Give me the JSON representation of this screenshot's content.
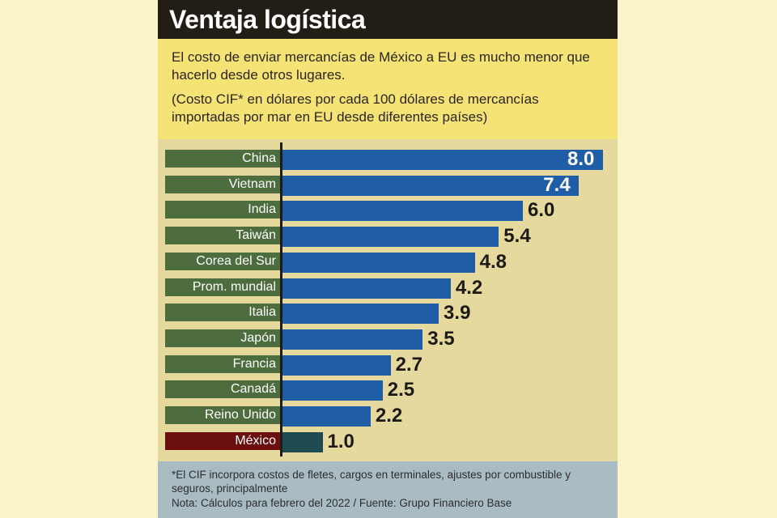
{
  "header": {
    "title": "Ventaja logística",
    "subtitle": "El costo de enviar mercancías de México a EU es mucho menor que hacerlo desde otros lugares.",
    "units": "(Costo CIF* en dólares por cada 100 dólares de mercancías importadas por mar en EU desde diferentes países)"
  },
  "footer": {
    "footnote": "*El CIF incorpora costos de fletes, cargos en terminales, ajustes por combustible y seguros, principalmente",
    "source": "Nota: Cálculos para febrero del 2022 / Fuente: Grupo Financiero Base"
  },
  "colors": {
    "bar": "#1f5da6",
    "bar_highlight": "#1e4a52",
    "label_bg": "#4d6d3e",
    "label_highlight_bg": "#6b0f0f"
  },
  "chart_data": {
    "type": "bar",
    "orientation": "horizontal",
    "categories": [
      "China",
      "Vietnam",
      "India",
      "Taiwán",
      "Corea del Sur",
      "Prom. mundial",
      "Italia",
      "Japón",
      "Francia",
      "Canadá",
      "Reino Unido",
      "México"
    ],
    "values": [
      8.0,
      7.4,
      6.0,
      5.4,
      4.8,
      4.2,
      3.9,
      3.5,
      2.7,
      2.5,
      2.2,
      1.0
    ],
    "value_labels": [
      "8.0",
      "7.4",
      "6.0",
      "5.4",
      "4.8",
      "4.2",
      "3.9",
      "3.5",
      "2.7",
      "2.5",
      "2.2",
      "1.0"
    ],
    "highlight": "México",
    "xlim": [
      0,
      8.0
    ],
    "grid": false,
    "legend": "none"
  }
}
